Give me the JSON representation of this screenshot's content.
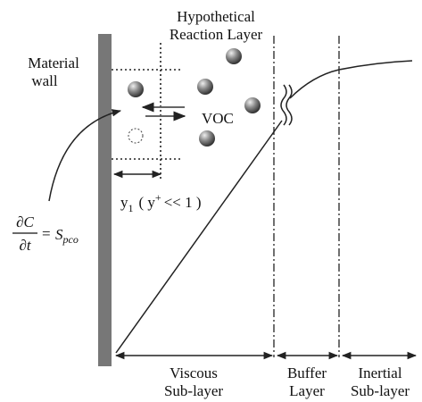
{
  "reaction_layer": [
    "Hypothetical",
    "Reaction Layer"
  ],
  "material_wall": [
    "Material",
    "wall"
  ],
  "voc": "VOC",
  "y1": {
    "y": "y",
    "sub": "1",
    "open": "( y",
    "sup": "+",
    "rest": "<< 1 )"
  },
  "equation": {
    "numerator": "∂C",
    "denominator": "∂t",
    "equals": "=",
    "s": "S",
    "sub": "pco"
  },
  "regions": [
    {
      "lines": [
        "Viscous",
        "Sub-layer"
      ]
    },
    {
      "lines": [
        "Buffer",
        "Layer"
      ]
    },
    {
      "lines": [
        "Inertial",
        "Sub-layer"
      ]
    }
  ]
}
